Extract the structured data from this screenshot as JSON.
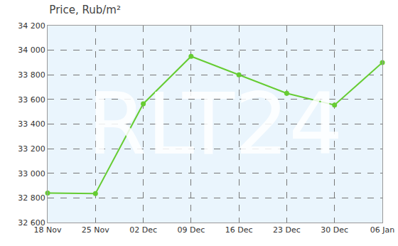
{
  "chart_data": {
    "type": "line",
    "title": "Price, Rub/m²",
    "watermark": "RLT24",
    "categories": [
      "18 Nov",
      "25 Nov",
      "02 Dec",
      "09 Dec",
      "16 Dec",
      "23 Dec",
      "30 Dec",
      "06 Jan"
    ],
    "values": [
      32840,
      32835,
      33565,
      33950,
      33800,
      33650,
      33555,
      33900
    ],
    "color": "#66cc33",
    "marker": "circle",
    "ylim": [
      32600,
      34200
    ],
    "yticks": [
      {
        "value": 32600,
        "label": "32 600"
      },
      {
        "value": 32800,
        "label": "32 800"
      },
      {
        "value": 33000,
        "label": "33 000"
      },
      {
        "value": 33200,
        "label": "33 200"
      },
      {
        "value": 33400,
        "label": "33 400"
      },
      {
        "value": 33600,
        "label": "33 600"
      },
      {
        "value": 33800,
        "label": "33 800"
      },
      {
        "value": 34000,
        "label": "34 000"
      },
      {
        "value": 34200,
        "label": "34 200"
      }
    ],
    "grid": true
  }
}
